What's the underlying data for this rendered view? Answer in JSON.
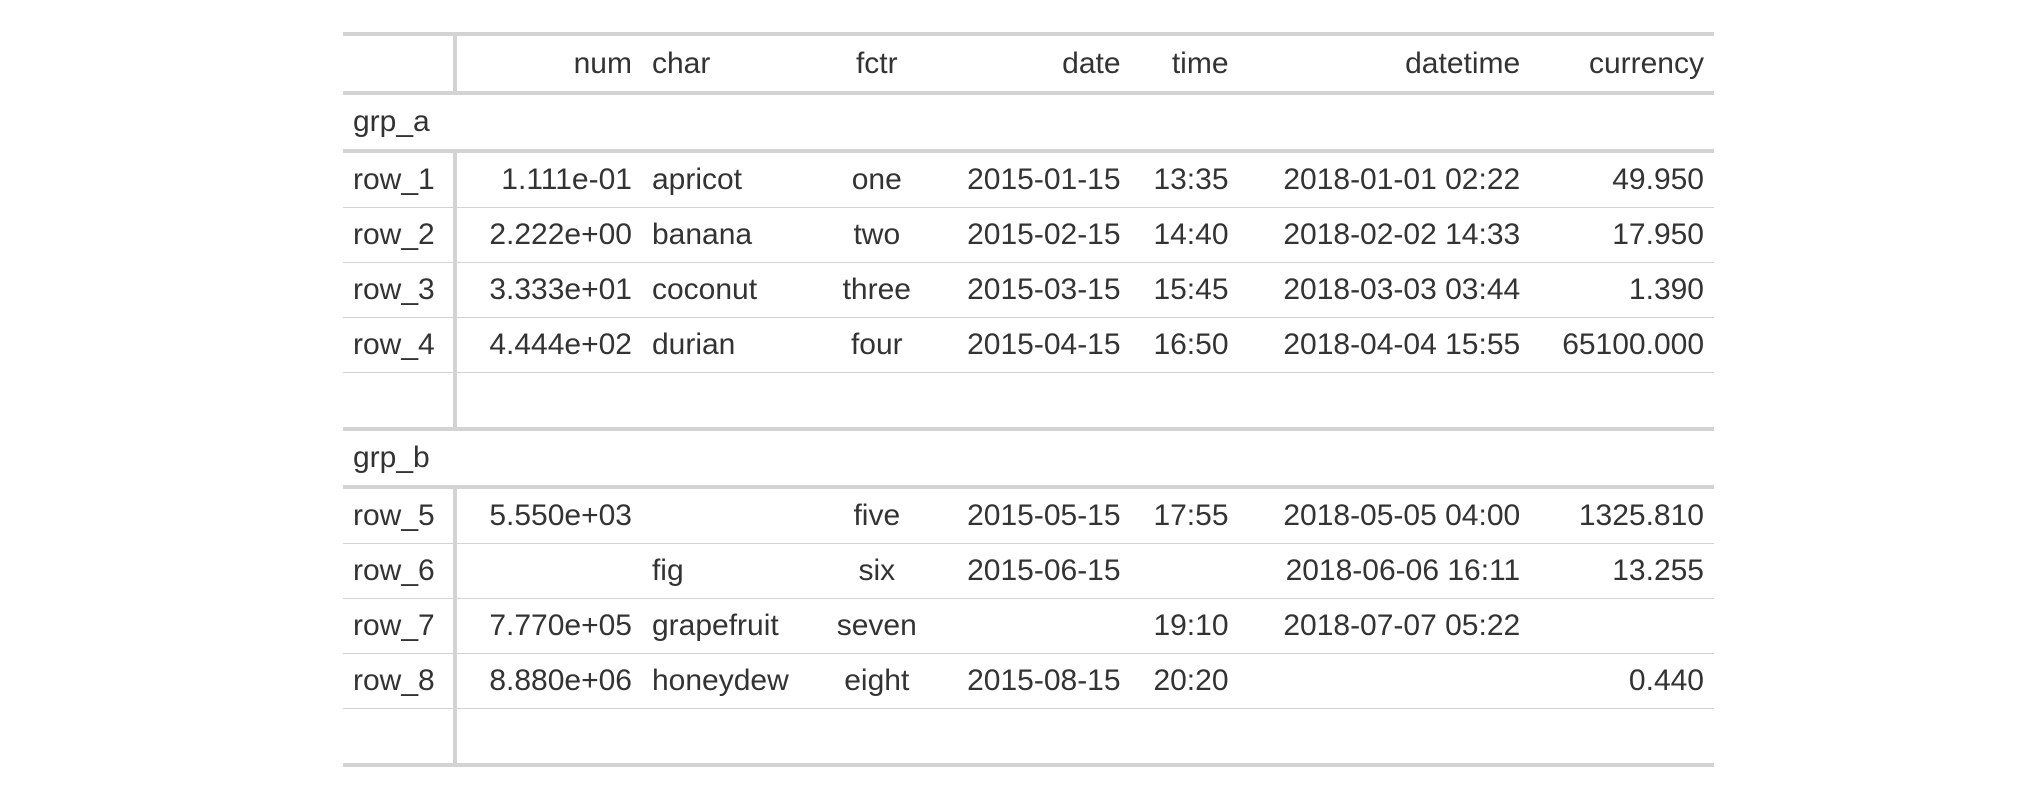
{
  "columns": {
    "num": "num",
    "char": "char",
    "fctr": "fctr",
    "date": "date",
    "time": "time",
    "datetime": "datetime",
    "currency": "currency"
  },
  "groups": [
    {
      "label": "grp_a",
      "rows": [
        {
          "row": "row_1",
          "num": "1.111e-01",
          "char": "apricot",
          "fctr": "one",
          "date": "2015-01-15",
          "time": "13:35",
          "datetime": "2018-01-01 02:22",
          "currency": "49.950"
        },
        {
          "row": "row_2",
          "num": "2.222e+00",
          "char": "banana",
          "fctr": "two",
          "date": "2015-02-15",
          "time": "14:40",
          "datetime": "2018-02-02 14:33",
          "currency": "17.950"
        },
        {
          "row": "row_3",
          "num": "3.333e+01",
          "char": "coconut",
          "fctr": "three",
          "date": "2015-03-15",
          "time": "15:45",
          "datetime": "2018-03-03 03:44",
          "currency": "1.390"
        },
        {
          "row": "row_4",
          "num": "4.444e+02",
          "char": "durian",
          "fctr": "four",
          "date": "2015-04-15",
          "time": "16:50",
          "datetime": "2018-04-04 15:55",
          "currency": "65100.000"
        }
      ]
    },
    {
      "label": "grp_b",
      "rows": [
        {
          "row": "row_5",
          "num": "5.550e+03",
          "char": "",
          "fctr": "five",
          "date": "2015-05-15",
          "time": "17:55",
          "datetime": "2018-05-05 04:00",
          "currency": "1325.810"
        },
        {
          "row": "row_6",
          "num": "",
          "char": "fig",
          "fctr": "six",
          "date": "2015-06-15",
          "time": "",
          "datetime": "2018-06-06 16:11",
          "currency": "13.255"
        },
        {
          "row": "row_7",
          "num": "7.770e+05",
          "char": "grapefruit",
          "fctr": "seven",
          "date": "",
          "time": "19:10",
          "datetime": "2018-07-07 05:22",
          "currency": ""
        },
        {
          "row": "row_8",
          "num": "8.880e+06",
          "char": "honeydew",
          "fctr": "eight",
          "date": "2015-08-15",
          "time": "20:20",
          "datetime": "",
          "currency": "0.440"
        }
      ]
    }
  ]
}
